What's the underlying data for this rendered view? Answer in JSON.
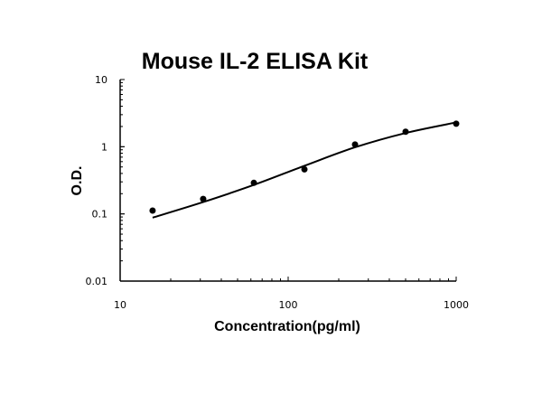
{
  "chart_data": {
    "type": "scatter",
    "title": "Mouse IL-2 ELISA Kit",
    "xlabel": "Concentration(pg/ml)",
    "ylabel": "O.D.",
    "xscale": "log",
    "yscale": "log",
    "xlim": [
      10,
      1000
    ],
    "ylim": [
      0.01,
      10
    ],
    "x_ticks": [
      "10",
      "100",
      "1000"
    ],
    "y_ticks": [
      "10",
      "1",
      "0.1",
      "0.01"
    ],
    "grid": false,
    "legend": null,
    "series": [
      {
        "name": "Standard points",
        "style": "markers",
        "x": [
          15.6,
          31.2,
          62.5,
          125,
          250,
          500,
          1000
        ],
        "y": [
          0.112,
          0.167,
          0.29,
          0.46,
          1.08,
          1.67,
          2.2
        ]
      },
      {
        "name": "Fitted curve",
        "style": "line",
        "x": [
          15.6,
          31.2,
          62.5,
          125,
          250,
          500,
          1000
        ],
        "y": [
          0.088,
          0.15,
          0.27,
          0.52,
          0.98,
          1.6,
          2.3
        ]
      }
    ]
  }
}
